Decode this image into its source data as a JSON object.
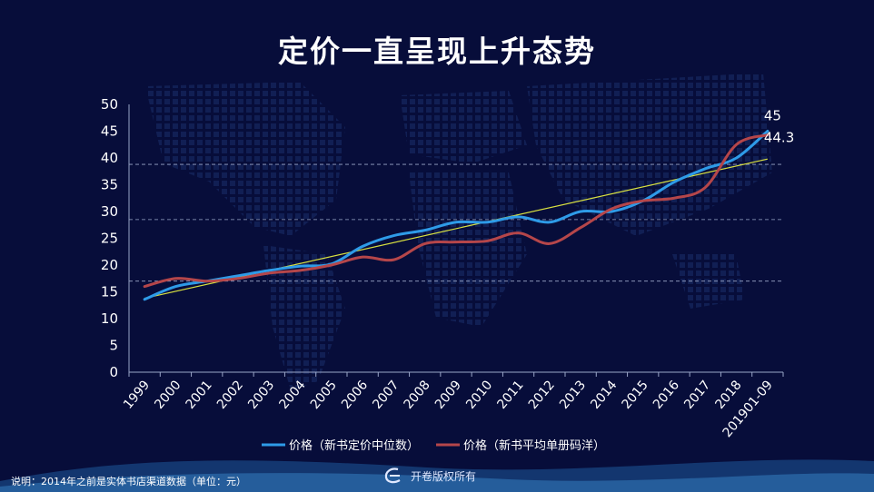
{
  "title": "定价一直呈现上升态势",
  "footnote": "说明：2014年之前是实体书店渠道数据（单位：元）",
  "brand": "开卷版权所有",
  "colors": {
    "background": "#070d3a",
    "series_blue": "#2e9be8",
    "series_red": "#b5464a",
    "trend": "#d8e040"
  },
  "chart_data": {
    "type": "line",
    "categories": [
      "1999",
      "2000",
      "2001",
      "2002",
      "2003",
      "2004",
      "2005",
      "2006",
      "2007",
      "2008",
      "2009",
      "2010",
      "2011",
      "2012",
      "2013",
      "2014",
      "2015",
      "2016",
      "2017",
      "2018",
      "201901-09"
    ],
    "ylim": [
      0,
      50
    ],
    "yticks": [
      0,
      5,
      10,
      15,
      20,
      25,
      30,
      35,
      40,
      45,
      50
    ],
    "grid_dashed_y": [
      17,
      28.5,
      38.8
    ],
    "series": [
      {
        "name": "价格（新书定价中位数）",
        "color": "#2e9be8",
        "values": [
          13.6,
          16.0,
          17.0,
          18.0,
          19.0,
          19.8,
          20.2,
          23.5,
          25.5,
          26.5,
          28.0,
          28.0,
          29.0,
          28.0,
          30.0,
          30.0,
          32.0,
          35.5,
          38.0,
          40.0,
          45.0
        ]
      },
      {
        "name": "价格（新书平均单册码洋）",
        "color": "#b5464a",
        "values": [
          16.0,
          17.5,
          17.0,
          17.5,
          18.5,
          19.0,
          20.0,
          21.5,
          21.0,
          24.0,
          24.3,
          24.5,
          26.0,
          24.0,
          27.0,
          30.5,
          32.0,
          32.5,
          34.5,
          42.5,
          44.3
        ]
      }
    ],
    "trendline": {
      "start": 13.8,
      "end": 39.8
    },
    "data_labels": [
      {
        "series": 0,
        "index": 20,
        "text": "45"
      },
      {
        "series": 1,
        "index": 20,
        "text": "44.3"
      }
    ],
    "legend_position": "bottom"
  }
}
